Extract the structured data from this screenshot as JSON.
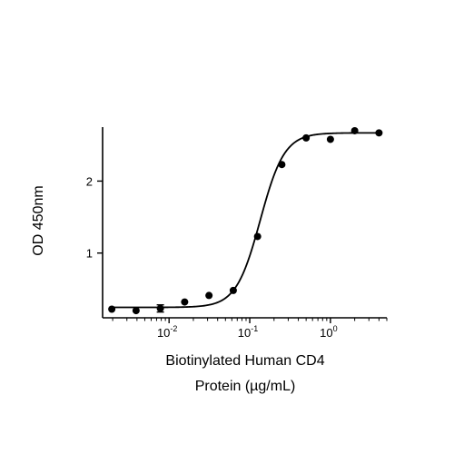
{
  "chart_data": {
    "type": "scatter",
    "xscale": "log",
    "xlabel_lines": [
      "Biotinylated Human CD4",
      "Protein (µg/mL)"
    ],
    "ylabel": "OD 450nm",
    "xlim": [
      0.0015,
      5
    ],
    "ylim": [
      0.1,
      2.75
    ],
    "x_ticks": [
      {
        "value": 0.01,
        "label": "10",
        "exp": "-2"
      },
      {
        "value": 0.1,
        "label": "10",
        "exp": "-1"
      },
      {
        "value": 1,
        "label": "10",
        "exp": "0"
      }
    ],
    "y_ticks": [
      {
        "value": 1,
        "label": "1"
      },
      {
        "value": 2,
        "label": "2"
      }
    ],
    "points": [
      {
        "x": 0.00195,
        "y": 0.22
      },
      {
        "x": 0.0039,
        "y": 0.2
      },
      {
        "x": 0.0078,
        "y": 0.23,
        "err": 0.05
      },
      {
        "x": 0.0156,
        "y": 0.32
      },
      {
        "x": 0.03125,
        "y": 0.41
      },
      {
        "x": 0.0625,
        "y": 0.48
      },
      {
        "x": 0.125,
        "y": 1.23
      },
      {
        "x": 0.25,
        "y": 2.23
      },
      {
        "x": 0.5,
        "y": 2.6
      },
      {
        "x": 1.0,
        "y": 2.58
      },
      {
        "x": 2.0,
        "y": 2.7
      },
      {
        "x": 4.0,
        "y": 2.67
      }
    ],
    "fit": {
      "model": "4PL",
      "bottom": 0.245,
      "top": 2.67,
      "ec50": 0.135,
      "hill": 2.9
    },
    "grid": false,
    "legend": "none",
    "color": "#000000"
  }
}
